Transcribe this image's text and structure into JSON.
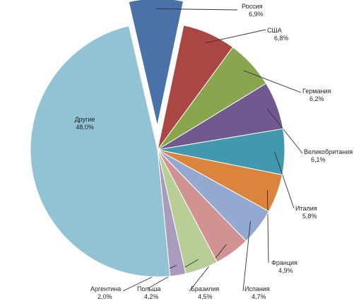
{
  "chart_data": {
    "type": "pie",
    "title": "",
    "slices": [
      {
        "name": "Россия",
        "value": 6.9,
        "label": "6,9%",
        "color": "#4a72a8"
      },
      {
        "name": "США",
        "value": 6.8,
        "label": "6,8%",
        "color": "#aa4644"
      },
      {
        "name": "Германия",
        "value": 6.2,
        "label": "6,2%",
        "color": "#89a54e"
      },
      {
        "name": "Великобритания",
        "value": 6.1,
        "label": "6,1%",
        "color": "#71598f"
      },
      {
        "name": "Италия",
        "value": 5.8,
        "label": "5,8%",
        "color": "#4298af"
      },
      {
        "name": "Франция",
        "value": 4.9,
        "label": "4,9%",
        "color": "#db843d"
      },
      {
        "name": "Испания",
        "value": 4.7,
        "label": "4,7%",
        "color": "#93a9d0"
      },
      {
        "name": "Бразилия",
        "value": 4.5,
        "label": "4,5%",
        "color": "#d09392"
      },
      {
        "name": "Польша",
        "value": 4.2,
        "label": "4,2%",
        "color": "#b9cd96"
      },
      {
        "name": "Аргентина",
        "value": 2.0,
        "label": "2,0%",
        "color": "#a99bbd"
      },
      {
        "name": "Другие",
        "value": 48.0,
        "label": "48,0%",
        "color": "#92c3d4"
      }
    ],
    "exploded": [
      "Россия"
    ],
    "legend": "none"
  }
}
